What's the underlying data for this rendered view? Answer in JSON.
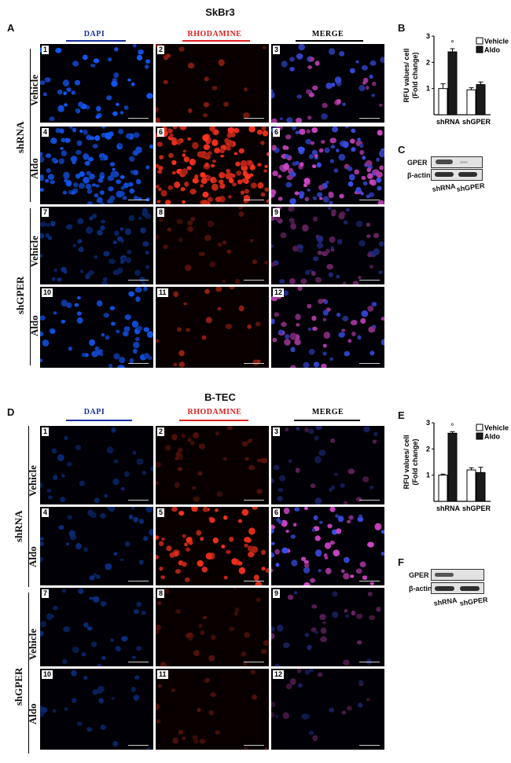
{
  "figure": {
    "top": {
      "title": "SkBr3",
      "letters": {
        "a": "A",
        "b": "B",
        "c": "C"
      },
      "columns": [
        "DAPI",
        "RHODAMINE",
        "MERGE"
      ],
      "groups": [
        "shRNA",
        "shGPER"
      ],
      "rows": [
        "Vehicle",
        "Aldo",
        "Vehicle",
        "Aldo"
      ],
      "numbers": [
        "1",
        "2",
        "3",
        "4",
        "6",
        "6",
        "7",
        "8",
        "9",
        "10",
        "11",
        "12"
      ],
      "blot": {
        "bands": [
          "GPER",
          "β-actin"
        ],
        "lanes": [
          "shRNA",
          "shGPER"
        ]
      }
    },
    "bottom": {
      "title": "B-TEC",
      "letters": {
        "d": "D",
        "e": "E",
        "f": "F"
      },
      "columns": [
        "DAPI",
        "RHODAMINE",
        "MERGE"
      ],
      "groups": [
        "shRNA",
        "shGPER"
      ],
      "rows": [
        "Vehicle",
        "Aldo",
        "Vehicle",
        "Aldo"
      ],
      "numbers": [
        "1",
        "2",
        "3",
        "4",
        "5",
        "6",
        "7",
        "8",
        "9",
        "10",
        "11",
        "12"
      ],
      "blot": {
        "bands": [
          "GPER",
          "β-actin"
        ],
        "lanes": [
          "shRNA",
          "shGPER"
        ]
      }
    },
    "colors": {
      "dapi": "#1a2fa0",
      "rhodamine": "#e02020",
      "merge": "#000000"
    }
  },
  "chart_data": [
    {
      "type": "bar",
      "panel": "B",
      "ylabel": "RFU values/ cell (Fold change)",
      "categories": [
        "shRNA",
        "shGPER"
      ],
      "series": [
        {
          "name": "Vehicle",
          "values": [
            1.0,
            0.95
          ],
          "errors": [
            0.18,
            0.08
          ]
        },
        {
          "name": "Aldo",
          "values": [
            2.4,
            1.15
          ],
          "errors": [
            0.12,
            0.1
          ]
        }
      ],
      "ylim": [
        0,
        3
      ],
      "yticks": [
        "1",
        "2",
        "3"
      ],
      "annotation": "°",
      "legend": "top-right"
    },
    {
      "type": "bar",
      "panel": "E",
      "ylabel": "RFU values/ cell (Fold change)",
      "categories": [
        "shRNA",
        "shGPER"
      ],
      "series": [
        {
          "name": "Vehicle",
          "values": [
            1.0,
            1.2
          ],
          "errors": [
            0.04,
            0.08
          ]
        },
        {
          "name": "Aldo",
          "values": [
            2.6,
            1.1
          ],
          "errors": [
            0.06,
            0.2
          ]
        }
      ],
      "ylim": [
        0,
        3
      ],
      "yticks": [
        "1",
        "2",
        "3"
      ],
      "annotation": "°",
      "legend": "top-right"
    }
  ]
}
